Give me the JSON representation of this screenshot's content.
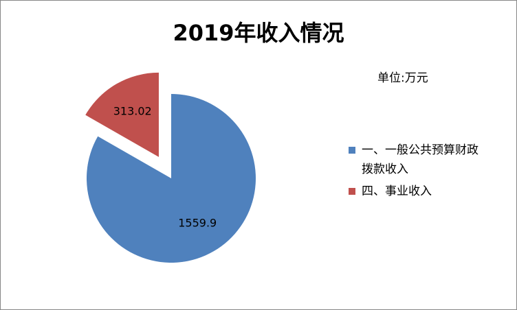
{
  "chart_data": {
    "type": "pie",
    "title": "2019年收入情况",
    "unit_note": "单位:万元",
    "categories": [
      "一、一般公共预算财政拨款收入",
      "四、事业收入"
    ],
    "values": [
      1559.9,
      313.02
    ],
    "data_labels": [
      "1559.9",
      "313.02"
    ],
    "colors": [
      "#4f81bd",
      "#c0504d"
    ],
    "exploded": [
      false,
      true
    ],
    "legend_position": "right"
  }
}
